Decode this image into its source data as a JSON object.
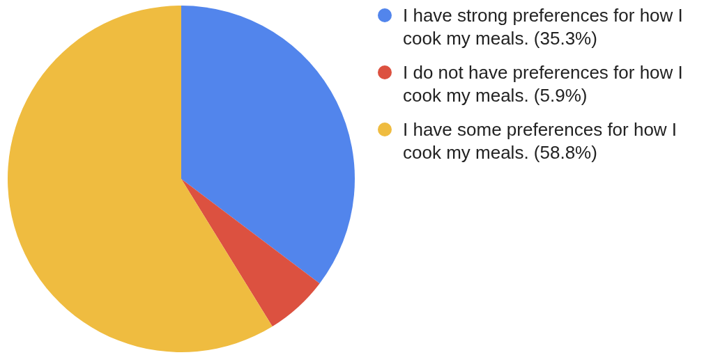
{
  "chart_data": {
    "type": "pie",
    "categories": [
      "I have strong preferences for how I cook my meals.",
      "I do not have preferences for how I cook my meals.",
      "I have some preferences for how I cook my meals."
    ],
    "values": [
      35.3,
      5.9,
      58.8
    ],
    "value_labels": [
      "(35.3%)",
      "(5.9%)",
      "(58.8%)"
    ],
    "colors": [
      "#5285ec",
      "#dc5140",
      "#efbc40"
    ],
    "legend": "right"
  }
}
